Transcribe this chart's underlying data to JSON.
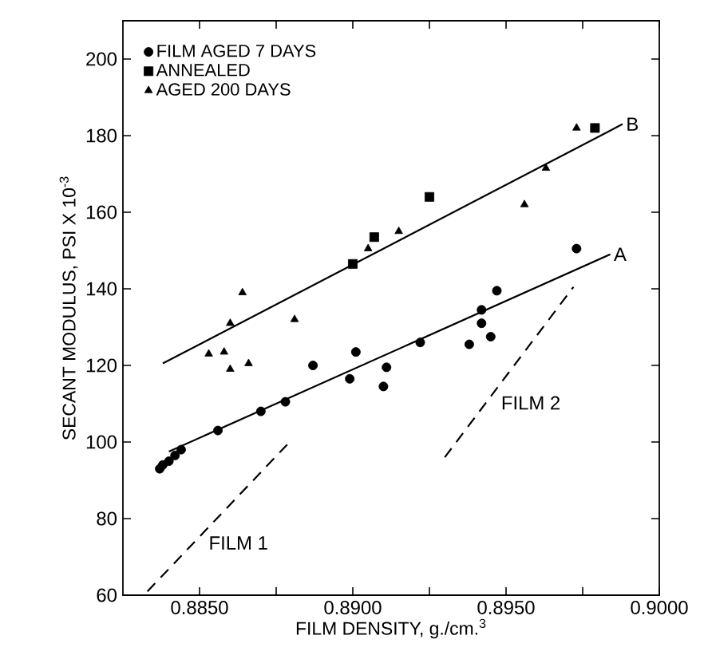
{
  "chart_data": {
    "type": "scatter",
    "xlabel": "FILM DENSITY, g./cm.$^{3}$",
    "ylabel": "SECANT MODULUS, PSI X 10$^{-3}$",
    "xlim": [
      0.8825,
      0.9
    ],
    "ylim": [
      60,
      210
    ],
    "xticks": [
      {
        "value": 0.885,
        "label": "0.8850"
      },
      {
        "value": 0.8875,
        "label": null
      },
      {
        "value": 0.89,
        "label": "0.8900"
      },
      {
        "value": 0.8925,
        "label": null
      },
      {
        "value": 0.895,
        "label": "0.8950"
      },
      {
        "value": 0.8975,
        "label": null
      },
      {
        "value": 0.9,
        "label": "0.9000"
      }
    ],
    "yticks": [
      60,
      80,
      100,
      120,
      140,
      160,
      180,
      200
    ],
    "legend": "top left",
    "series": [
      {
        "name": "FILM AGED 7 DAYS",
        "marker": "circle",
        "color": "#000000",
        "x": [
          0.8837,
          0.8838,
          0.884,
          0.8842,
          0.8844,
          0.8856,
          0.887,
          0.8878,
          0.8887,
          0.8899,
          0.8901,
          0.891,
          0.8911,
          0.8922,
          0.8938,
          0.8942,
          0.8942,
          0.8945,
          0.8947,
          0.8973
        ],
        "values": [
          93,
          94,
          95,
          96.5,
          98,
          103,
          108,
          110.5,
          120,
          116.5,
          123.5,
          114.5,
          119.5,
          126,
          125.5,
          134.5,
          131,
          127.5,
          139.5,
          150.5
        ]
      },
      {
        "name": "ANNEALED",
        "marker": "square",
        "color": "#000000",
        "x": [
          0.89,
          0.8907,
          0.8925,
          0.8979
        ],
        "values": [
          146.5,
          153.5,
          164,
          182
        ]
      },
      {
        "name": "AGED 200 DAYS",
        "marker": "triangle",
        "color": "#000000",
        "x": [
          0.8853,
          0.8858,
          0.886,
          0.886,
          0.8864,
          0.8866,
          0.8881,
          0.8905,
          0.8915,
          0.8956,
          0.8963,
          0.8973
        ],
        "values": [
          123,
          123.5,
          119,
          131,
          139,
          120.5,
          132,
          150.5,
          155,
          162,
          171.5,
          182
        ]
      },
      {
        "name": "B",
        "type": "line",
        "marker": "none",
        "line_style": "solid",
        "color": "#000000",
        "x": [
          0.8838,
          0.8988
        ],
        "values": [
          120.5,
          183
        ]
      },
      {
        "name": "A",
        "type": "line",
        "marker": "none",
        "line_style": "solid",
        "color": "#000000",
        "x": [
          0.884,
          0.8984
        ],
        "values": [
          97.5,
          149
        ]
      },
      {
        "name": "FILM 1",
        "type": "line",
        "marker": "none",
        "line_style": "dashed",
        "color": "#000000",
        "x": [
          0.8833,
          0.888
        ],
        "values": [
          61,
          100.5
        ]
      },
      {
        "name": "FILM 2",
        "type": "line",
        "marker": "none",
        "line_style": "dashed",
        "color": "#000000",
        "x": [
          0.893,
          0.8972
        ],
        "values": [
          96,
          140.5
        ]
      }
    ]
  }
}
